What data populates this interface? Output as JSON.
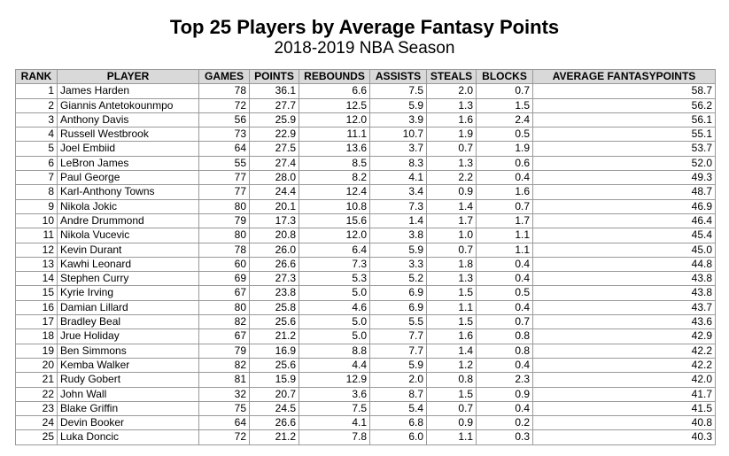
{
  "title": "Top 25 Players by Average Fantasy Points",
  "subtitle": "2018-2019 NBA Season",
  "headers": [
    "RANK",
    "PLAYER",
    "GAMES",
    "POINTS",
    "REBOUNDS",
    "ASSISTS",
    "STEALS",
    "BLOCKS",
    "AVERAGE FANTASYPOINTS"
  ],
  "rows": [
    [
      "1",
      "James Harden",
      "78",
      "36.1",
      "6.6",
      "7.5",
      "2.0",
      "0.7",
      "58.7"
    ],
    [
      "2",
      "Giannis Antetokounmpo",
      "72",
      "27.7",
      "12.5",
      "5.9",
      "1.3",
      "1.5",
      "56.2"
    ],
    [
      "3",
      "Anthony Davis",
      "56",
      "25.9",
      "12.0",
      "3.9",
      "1.6",
      "2.4",
      "56.1"
    ],
    [
      "4",
      "Russell Westbrook",
      "73",
      "22.9",
      "11.1",
      "10.7",
      "1.9",
      "0.5",
      "55.1"
    ],
    [
      "5",
      "Joel Embiid",
      "64",
      "27.5",
      "13.6",
      "3.7",
      "0.7",
      "1.9",
      "53.7"
    ],
    [
      "6",
      "LeBron James",
      "55",
      "27.4",
      "8.5",
      "8.3",
      "1.3",
      "0.6",
      "52.0"
    ],
    [
      "7",
      "Paul George",
      "77",
      "28.0",
      "8.2",
      "4.1",
      "2.2",
      "0.4",
      "49.3"
    ],
    [
      "8",
      "Karl-Anthony Towns",
      "77",
      "24.4",
      "12.4",
      "3.4",
      "0.9",
      "1.6",
      "48.7"
    ],
    [
      "9",
      "Nikola Jokic",
      "80",
      "20.1",
      "10.8",
      "7.3",
      "1.4",
      "0.7",
      "46.9"
    ],
    [
      "10",
      "Andre Drummond",
      "79",
      "17.3",
      "15.6",
      "1.4",
      "1.7",
      "1.7",
      "46.4"
    ],
    [
      "11",
      "Nikola Vucevic",
      "80",
      "20.8",
      "12.0",
      "3.8",
      "1.0",
      "1.1",
      "45.4"
    ],
    [
      "12",
      "Kevin Durant",
      "78",
      "26.0",
      "6.4",
      "5.9",
      "0.7",
      "1.1",
      "45.0"
    ],
    [
      "13",
      "Kawhi Leonard",
      "60",
      "26.6",
      "7.3",
      "3.3",
      "1.8",
      "0.4",
      "44.8"
    ],
    [
      "14",
      "Stephen Curry",
      "69",
      "27.3",
      "5.3",
      "5.2",
      "1.3",
      "0.4",
      "43.8"
    ],
    [
      "15",
      "Kyrie Irving",
      "67",
      "23.8",
      "5.0",
      "6.9",
      "1.5",
      "0.5",
      "43.8"
    ],
    [
      "16",
      "Damian Lillard",
      "80",
      "25.8",
      "4.6",
      "6.9",
      "1.1",
      "0.4",
      "43.7"
    ],
    [
      "17",
      "Bradley Beal",
      "82",
      "25.6",
      "5.0",
      "5.5",
      "1.5",
      "0.7",
      "43.6"
    ],
    [
      "18",
      "Jrue Holiday",
      "67",
      "21.2",
      "5.0",
      "7.7",
      "1.6",
      "0.8",
      "42.9"
    ],
    [
      "19",
      "Ben Simmons",
      "79",
      "16.9",
      "8.8",
      "7.7",
      "1.4",
      "0.8",
      "42.2"
    ],
    [
      "20",
      "Kemba Walker",
      "82",
      "25.6",
      "4.4",
      "5.9",
      "1.2",
      "0.4",
      "42.2"
    ],
    [
      "21",
      "Rudy Gobert",
      "81",
      "15.9",
      "12.9",
      "2.0",
      "0.8",
      "2.3",
      "42.0"
    ],
    [
      "22",
      "John Wall",
      "32",
      "20.7",
      "3.6",
      "8.7",
      "1.5",
      "0.9",
      "41.7"
    ],
    [
      "23",
      "Blake Griffin",
      "75",
      "24.5",
      "7.5",
      "5.4",
      "0.7",
      "0.4",
      "41.5"
    ],
    [
      "24",
      "Devin Booker",
      "64",
      "26.6",
      "4.1",
      "6.8",
      "0.9",
      "0.2",
      "40.8"
    ],
    [
      "25",
      "Luka Doncic",
      "72",
      "21.2",
      "7.8",
      "6.0",
      "1.1",
      "0.3",
      "40.3"
    ]
  ]
}
